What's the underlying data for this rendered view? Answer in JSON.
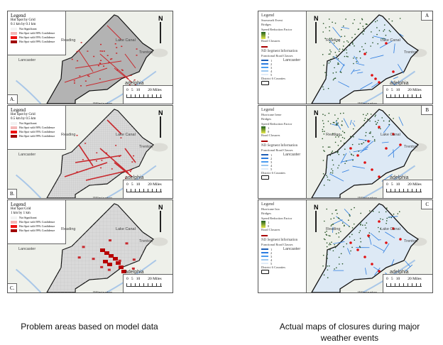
{
  "left_panels": [
    {
      "label": "A.",
      "legend_title": "Legend",
      "legend_subtitle": "Hot Spot by Grid",
      "legend_resolution": "0.1 km by 0.1 km"
    },
    {
      "label": "B.",
      "legend_title": "Legend",
      "legend_subtitle": "Hot Spot by Grid",
      "legend_resolution": "0.5 km by 0.5 km"
    },
    {
      "label": "C.",
      "legend_title": "Legend",
      "legend_subtitle": "Hot Spot Grid",
      "legend_resolution": "1 km by 1 km"
    }
  ],
  "hotspot_legend_items": [
    {
      "label": "Not Significant",
      "color": "#f2f2f2"
    },
    {
      "label": "Hot Spot with 90% Confidence",
      "color": "#f4b6b6"
    },
    {
      "label": "Hot Spot with 95% Confidence",
      "color": "#ee1111"
    },
    {
      "label": "Hot Spot with 99% Confidence",
      "color": "#a00000"
    }
  ],
  "right_panels": [
    {
      "label": "A",
      "event": "Snowmelt Event"
    },
    {
      "label": "B",
      "event": "Hurricane Irene"
    },
    {
      "label": "C",
      "event": "Hurricane Isia"
    }
  ],
  "closure_legend": {
    "title": "Legend",
    "bridges": "Bridges",
    "speed_reduction": "Speed Reduction Factor",
    "sr_high": "1",
    "sr_low": "0",
    "road_closures": "Road Closures",
    "nd_segment": "ND Segment Information",
    "functional_class": "Functional Road Classes",
    "classes": [
      "1",
      "2",
      "3",
      "4",
      "5"
    ],
    "district": "District 6 Counties"
  },
  "places": {
    "reading": "Reading",
    "lancaster": "Lancaster",
    "trenton": "Trenton",
    "philadelphia": "Philadelphia",
    "philadelphia_visible": "adelphia",
    "wilmington": "Wilmington",
    "canal": "Lake Canal",
    "north": "N",
    "route": "70"
  },
  "scale": {
    "ticks": "0   5   10        20 Miles"
  },
  "captions": {
    "left": "Problem areas based on model data",
    "right": "Actual maps of closures during major weather events"
  },
  "colors": {
    "district_fill": "#b3b3b3",
    "district_fill_grid": "#d9d9d9",
    "hotspot": "#c8282d",
    "road_blue": "#2a7be0",
    "bridge_green": "#1f4f1f",
    "closure_red": "#e01010",
    "basemap": "#eef0ea"
  }
}
